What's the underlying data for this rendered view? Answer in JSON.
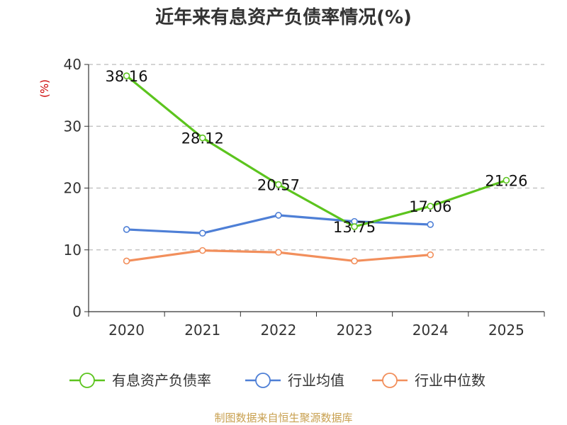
{
  "chart_data": {
    "type": "line",
    "title": "近年来有息资产负债率情况(%)",
    "ylabel": "(%)",
    "categories": [
      "2020",
      "2021",
      "2022",
      "2023",
      "2024",
      "2025"
    ],
    "ylim": [
      0,
      40
    ],
    "yticks": [
      0,
      10,
      20,
      30,
      40
    ],
    "grid": true,
    "legend_position": "bottom",
    "series": [
      {
        "name": "有息资产负债率",
        "color": "#5cc41e",
        "values": [
          38.16,
          28.12,
          20.57,
          13.75,
          17.06,
          21.26
        ],
        "labels": [
          "38.16",
          "28.12",
          "20.57",
          "13.75",
          "17.06",
          "21.26"
        ]
      },
      {
        "name": "行业均值",
        "color": "#4e7fd6",
        "values": [
          13.3,
          12.7,
          15.6,
          14.6,
          14.1,
          null
        ]
      },
      {
        "name": "行业中位数",
        "color": "#f28f5c",
        "values": [
          8.2,
          9.9,
          9.6,
          8.2,
          9.2,
          null
        ]
      }
    ],
    "source": "制图数据来自恒生聚源数据库"
  }
}
